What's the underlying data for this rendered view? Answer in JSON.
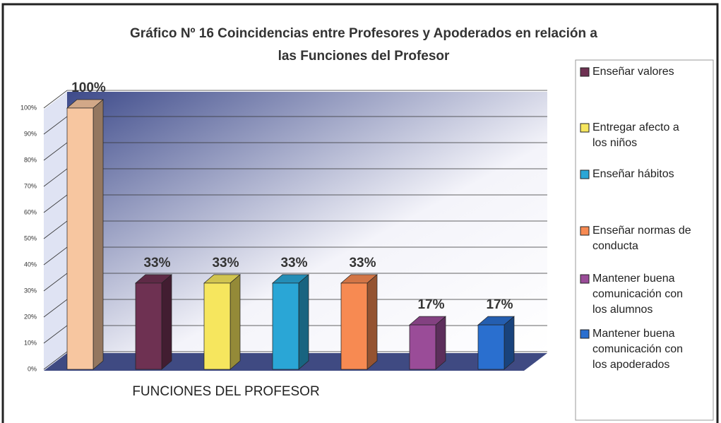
{
  "chart_data": {
    "type": "bar3d",
    "title": "Gráfico Nº 16 Coincidencias entre Profesores y Apoderados  en relación a",
    "subtitle": "las Funciones del Profesor",
    "x_label": "FUNCIONES DEL PROFESOR",
    "categories": [
      null,
      "Enseñar valores",
      "Entregar afecto a los niños",
      "Enseñar hábitos",
      "Enseñar normas de conducta",
      "Mantener buena comunicación con los alumnos",
      "Mantener buena comunicación con los apoderados"
    ],
    "values": [
      100,
      33,
      33,
      33,
      33,
      17,
      17
    ],
    "value_labels": [
      "100%",
      "33%",
      "33%",
      "33%",
      "33%",
      "17%",
      "17%"
    ],
    "colors": [
      "#f7c6a0",
      "#6e3152",
      "#f6e65e",
      "#2aa6d6",
      "#f78a52",
      "#9a4c98",
      "#2a6fcf"
    ],
    "ylim": [
      0,
      100
    ],
    "yticks": [
      {
        "value": 0,
        "label": "0%"
      },
      {
        "value": 10,
        "label": "10%"
      },
      {
        "value": 20,
        "label": "20%"
      },
      {
        "value": 30,
        "label": "30%"
      },
      {
        "value": 40,
        "label": "40%"
      },
      {
        "value": 50,
        "label": "50%"
      },
      {
        "value": 60,
        "label": "60%"
      },
      {
        "value": 70,
        "label": "70%"
      },
      {
        "value": 80,
        "label": "80%"
      },
      {
        "value": 90,
        "label": "90%"
      },
      {
        "value": 100,
        "label": "100%"
      }
    ],
    "grid": true
  }
}
